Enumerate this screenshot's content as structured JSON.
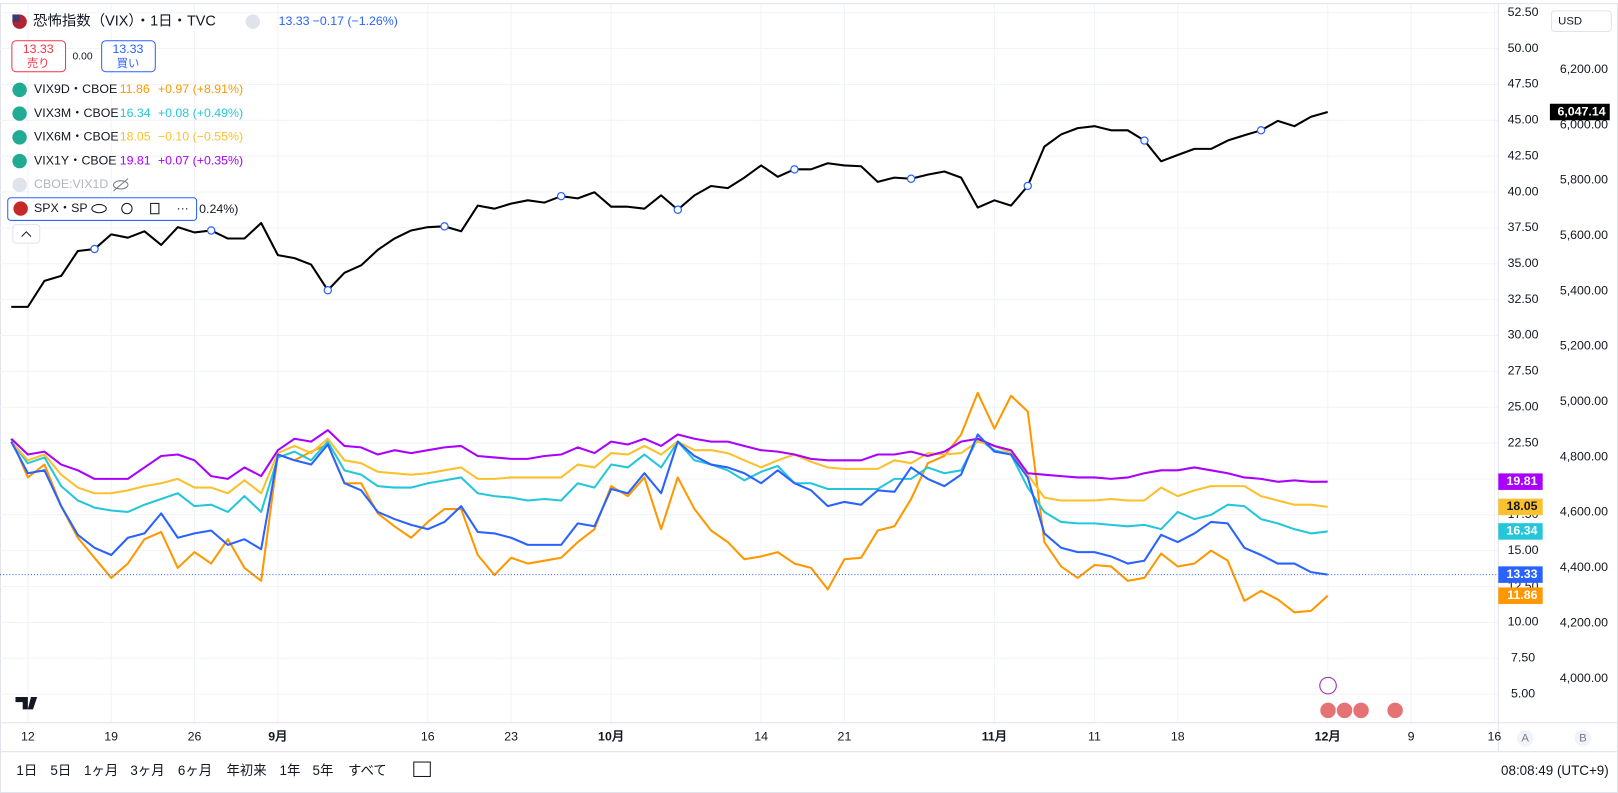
{
  "chart_data": {
    "type": "line",
    "categories": [
      null,
      "12",
      null,
      null,
      null,
      null,
      "19",
      null,
      null,
      null,
      null,
      "26",
      null,
      null,
      null,
      null,
      "9月",
      null,
      null,
      null,
      null,
      null,
      null,
      null,
      null,
      "16",
      null,
      null,
      null,
      null,
      "23",
      null,
      null,
      null,
      null,
      null,
      "10月",
      null,
      null,
      null,
      null,
      null,
      null,
      null,
      null,
      "14",
      null,
      null,
      null,
      null,
      "21",
      null,
      null,
      null,
      null,
      null,
      null,
      null,
      null,
      "11月",
      null,
      null,
      null,
      null,
      null,
      "11",
      null,
      null,
      null,
      null,
      "18",
      null,
      null,
      null,
      null,
      null,
      null,
      null,
      null,
      "12月",
      null,
      null,
      null,
      null,
      "9",
      null,
      null,
      null,
      null,
      "16"
    ],
    "series": [
      {
        "name": "VIX9D・CBOE",
        "color": "#ff9800",
        "change": "+0.97 (+8.91%)",
        "values": [
          22.8,
          20.1,
          21.0,
          18.1,
          15.9,
          14.5,
          13.1,
          14.1,
          15.8,
          16.3,
          13.8,
          14.9,
          14.1,
          15.8,
          13.8,
          12.9,
          21.7,
          21.3,
          21.9,
          22.4,
          19.7,
          19.7,
          17.6,
          16.7,
          15.9,
          17.0,
          17.9,
          17.9,
          14.7,
          13.3,
          14.5,
          14.1,
          14.3,
          14.5,
          15.6,
          16.5,
          19.5,
          18.8,
          20.1,
          16.5,
          20.1,
          17.9,
          16.4,
          15.6,
          14.4,
          14.6,
          14.9,
          14.1,
          13.8,
          12.3,
          14.4,
          14.5,
          16.4,
          16.7,
          18.6,
          21.1,
          21.6,
          23.1,
          26.0,
          23.5,
          25.8,
          24.7,
          15.6,
          13.9,
          13.1,
          14.0,
          13.9,
          12.9,
          13.1,
          14.8,
          13.9,
          14.1,
          15.0,
          14.3,
          11.5,
          12.2,
          11.6,
          10.7,
          10.8,
          11.86,
          null,
          null,
          null,
          null,
          null,
          null,
          null,
          null,
          null,
          null
        ]
      },
      {
        "name": "VIX3M・CBOE",
        "color": "#26c6da",
        "change": "+0.08 (+0.49%)",
        "values": [
          22.6,
          21.1,
          21.5,
          19.5,
          18.5,
          18.0,
          17.8,
          17.7,
          18.2,
          18.6,
          19.0,
          18.1,
          18.2,
          17.7,
          18.8,
          17.7,
          21.5,
          21.9,
          21.3,
          22.6,
          20.6,
          20.3,
          19.5,
          19.4,
          19.4,
          19.7,
          19.9,
          20.1,
          19.0,
          18.8,
          18.7,
          18.5,
          18.6,
          18.5,
          19.7,
          19.4,
          21.0,
          20.8,
          21.7,
          20.8,
          22.6,
          21.3,
          21.0,
          20.6,
          19.9,
          20.5,
          20.9,
          19.7,
          19.7,
          19.3,
          19.3,
          19.3,
          19.3,
          20.0,
          20.0,
          20.8,
          20.4,
          20.6,
          22.8,
          22.0,
          21.7,
          19.4,
          17.7,
          17.0,
          16.9,
          16.9,
          16.8,
          16.7,
          16.8,
          16.5,
          17.7,
          17.2,
          17.5,
          18.2,
          18.1,
          17.2,
          16.9,
          16.5,
          16.2,
          16.34,
          null,
          null,
          null,
          null,
          null,
          null,
          null,
          null,
          null,
          null
        ]
      },
      {
        "name": "VIX6M・CBOE",
        "color": "#fbc02d",
        "change": "−0.10 (−0.55%)",
        "values": [
          22.6,
          21.3,
          21.7,
          20.3,
          19.4,
          19.0,
          19.0,
          19.2,
          19.5,
          19.7,
          20.0,
          19.4,
          19.4,
          19.0,
          19.9,
          19.0,
          21.8,
          22.3,
          21.8,
          22.8,
          21.3,
          21.1,
          20.5,
          20.4,
          20.3,
          20.4,
          20.6,
          20.8,
          20.0,
          20.0,
          20.1,
          20.1,
          20.1,
          20.1,
          21.0,
          20.8,
          21.8,
          21.7,
          22.3,
          21.7,
          22.6,
          22.0,
          22.0,
          21.8,
          21.3,
          20.8,
          21.3,
          21.7,
          21.2,
          20.8,
          20.7,
          20.7,
          20.7,
          21.3,
          21.1,
          21.8,
          21.7,
          21.8,
          22.6,
          22.3,
          21.8,
          20.3,
          18.7,
          18.5,
          18.5,
          18.5,
          18.6,
          18.5,
          18.5,
          19.4,
          18.8,
          19.2,
          19.5,
          19.5,
          19.5,
          18.8,
          18.5,
          18.2,
          18.2,
          18.05,
          null,
          null,
          null,
          null,
          null,
          null,
          null,
          null,
          null,
          null
        ]
      },
      {
        "name": "VIX1Y・CBOE",
        "color": "#aa00ff",
        "change": "+0.07 (+0.35%)",
        "values": [
          22.8,
          21.7,
          21.9,
          21.0,
          20.6,
          20.0,
          20.0,
          20.0,
          20.8,
          21.6,
          21.7,
          21.3,
          20.2,
          20.0,
          20.8,
          20.2,
          22.0,
          22.8,
          22.6,
          23.4,
          22.3,
          22.2,
          21.7,
          22.0,
          21.8,
          22.0,
          22.2,
          22.3,
          21.6,
          21.5,
          21.4,
          21.4,
          21.6,
          21.7,
          22.2,
          21.8,
          22.6,
          22.4,
          22.8,
          22.3,
          23.1,
          22.8,
          22.6,
          22.6,
          22.3,
          22.0,
          21.9,
          21.7,
          21.4,
          21.3,
          21.3,
          21.3,
          21.7,
          21.7,
          21.9,
          21.6,
          21.9,
          22.6,
          22.8,
          22.3,
          22.0,
          20.4,
          20.3,
          20.2,
          20.1,
          20.1,
          20.0,
          20.1,
          20.4,
          20.6,
          20.6,
          20.8,
          20.6,
          20.4,
          20.1,
          20.0,
          19.8,
          19.9,
          19.8,
          19.81,
          null,
          null,
          null,
          null,
          null,
          null,
          null,
          null,
          null,
          null
        ]
      },
      {
        "name": "恐怖指数（VIX）・1日・TVC",
        "color": "#2962ff",
        "change": "−0.17 (−1.26%)",
        "values": [
          22.6,
          20.4,
          20.6,
          18.1,
          16.1,
          15.2,
          14.7,
          15.9,
          16.2,
          17.6,
          15.9,
          16.2,
          16.4,
          15.4,
          15.8,
          15.1,
          21.7,
          21.3,
          21.0,
          22.4,
          19.7,
          19.2,
          17.7,
          17.2,
          16.8,
          16.5,
          17.0,
          18.1,
          16.3,
          16.2,
          15.9,
          15.4,
          15.4,
          15.4,
          16.9,
          16.7,
          19.3,
          19.0,
          20.4,
          19.0,
          22.6,
          21.6,
          21.0,
          20.8,
          20.4,
          19.7,
          20.6,
          19.7,
          19.2,
          18.1,
          18.4,
          18.2,
          19.2,
          19.1,
          20.8,
          20.0,
          19.5,
          20.3,
          23.1,
          21.9,
          21.7,
          20.1,
          16.2,
          15.2,
          14.9,
          14.9,
          14.6,
          14.1,
          14.3,
          16.1,
          15.6,
          16.2,
          17.0,
          16.9,
          15.2,
          14.7,
          14.1,
          14.1,
          13.5,
          13.33,
          null,
          null,
          null,
          null,
          null,
          null,
          null,
          null,
          null,
          null
        ]
      },
      {
        "name": "SPX・SP",
        "color": "#000000",
        "axis": "y2",
        "change": "0.24%)",
        "last_value_label": "6,047.14",
        "values": [
          5343,
          5343,
          5437,
          5455,
          5545,
          5552,
          5605,
          5593,
          5616,
          5567,
          5631,
          5612,
          5619,
          5590,
          5590,
          5646,
          5530,
          5519,
          5496,
          5403,
          5466,
          5493,
          5549,
          5590,
          5619,
          5631,
          5634,
          5616,
          5709,
          5698,
          5716,
          5728,
          5720,
          5743,
          5735,
          5757,
          5705,
          5705,
          5698,
          5746,
          5694,
          5746,
          5780,
          5772,
          5810,
          5854,
          5813,
          5840,
          5840,
          5862,
          5854,
          5851,
          5795,
          5810,
          5806,
          5821,
          5832,
          5810,
          5702,
          5728,
          5709,
          5780,
          5922,
          5966,
          5989,
          5996,
          5981,
          5981,
          5944,
          5869,
          5892,
          5914,
          5914,
          5944,
          5963,
          5981,
          6015,
          5996,
          6030,
          6047.14,
          null,
          null,
          null,
          null,
          null,
          null,
          null,
          null,
          null,
          null
        ]
      }
    ],
    "ylim": [
      3.0,
      53.1
    ],
    "yticks": [
      {
        "value": 5,
        "label": "5.00"
      },
      {
        "value": 7.5,
        "label": "7.50"
      },
      {
        "value": 10,
        "label": "10.00"
      },
      {
        "value": 12.5,
        "label": "12.50"
      },
      {
        "value": 15,
        "label": "15.00"
      },
      {
        "value": 17.5,
        "label": "17.50"
      },
      {
        "value": 20,
        "label": "20.00"
      },
      {
        "value": 22.5,
        "label": "22.50"
      },
      {
        "value": 25,
        "label": "25.00"
      },
      {
        "value": 27.5,
        "label": "27.50"
      },
      {
        "value": 30,
        "label": "30.00"
      },
      {
        "value": 32.5,
        "label": "32.50"
      },
      {
        "value": 35,
        "label": "35.00"
      },
      {
        "value": 37.5,
        "label": "37.50"
      },
      {
        "value": 40,
        "label": "40.00"
      },
      {
        "value": 42.5,
        "label": "42.50"
      },
      {
        "value": 45,
        "label": "45.00"
      },
      {
        "value": 47.5,
        "label": "47.50"
      },
      {
        "value": 50,
        "label": "50.00"
      },
      {
        "value": 52.5,
        "label": "52.50"
      }
    ],
    "y2lim": [
      3840,
      6437
    ],
    "y2ticks": [
      {
        "value": 4000,
        "label": "4,000.00"
      },
      {
        "value": 4200,
        "label": "4,200.00"
      },
      {
        "value": 4400,
        "label": "4,400.00"
      },
      {
        "value": 4600,
        "label": "4,600.00"
      },
      {
        "value": 4800,
        "label": "4,800.00"
      },
      {
        "value": 5000,
        "label": "5,000.00"
      },
      {
        "value": 5200,
        "label": "5,200.00"
      },
      {
        "value": 5400,
        "label": "5,400.00"
      },
      {
        "value": 5600,
        "label": "5,600.00"
      },
      {
        "value": 5800,
        "label": "5,800.00"
      },
      {
        "value": 6000,
        "label": "6,000.00"
      },
      {
        "value": 6200,
        "label": "6,200.00"
      }
    ],
    "grid": true
  },
  "ui": {
    "sell": "売り",
    "spread": "0.00",
    "buy": "買い",
    "hidden_series": "CBOE:VIX1D",
    "currency": "USD",
    "timeframes": [
      "1日",
      "5日",
      "1ヶ月",
      "3ヶ月",
      "6ヶ月",
      "年初来",
      "1年",
      "5年",
      "すべて"
    ],
    "clock": "08:08:49 (UTC+9)",
    "scale_buttons": [
      "A",
      "B"
    ]
  }
}
